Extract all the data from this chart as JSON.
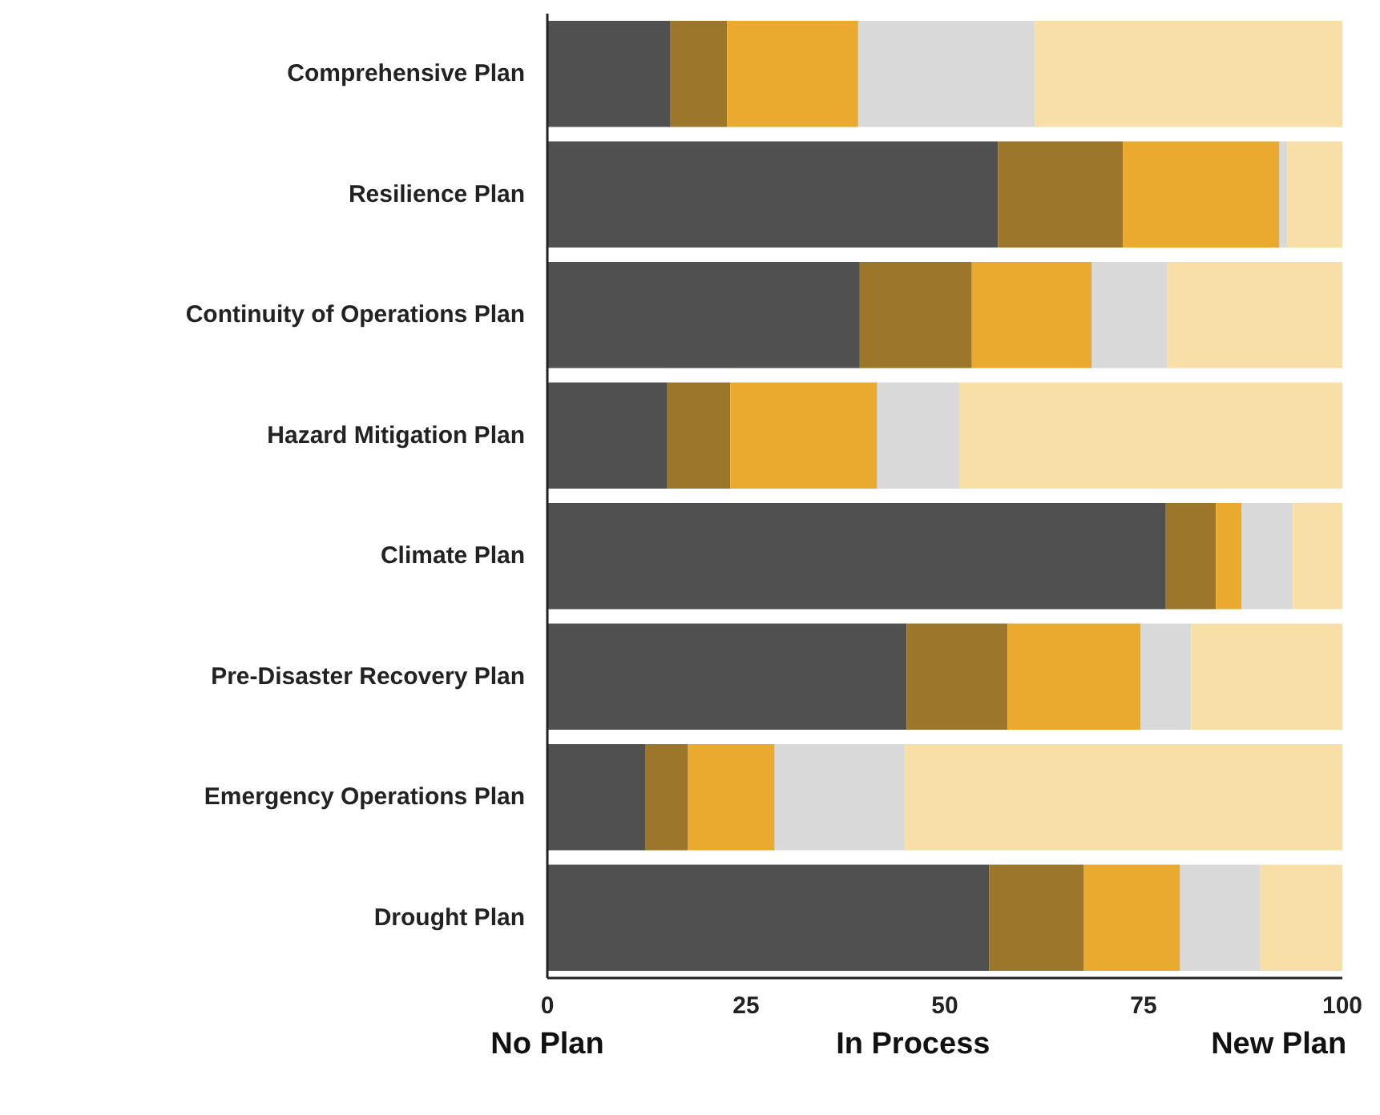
{
  "chart_data": {
    "type": "bar",
    "orientation": "horizontal",
    "stacked": true,
    "categories": [
      "Comprehensive Plan",
      "Resilience Plan",
      "Continuity of Operations Plan",
      "Hazard Mitigation Plan",
      "Climate Plan",
      "Pre-Disaster Recovery Plan",
      "Emergency Operations Plan",
      "Drought Plan"
    ],
    "series": [
      {
        "color": "#505050",
        "values": [
          15.5,
          56.7,
          39.3,
          15.1,
          77.8,
          45.2,
          12.3,
          55.6
        ]
      },
      {
        "color": "#9c772b",
        "values": [
          7.1,
          15.7,
          14.1,
          7.9,
          6.3,
          12.7,
          5.4,
          11.9
        ]
      },
      {
        "color": "#eaa92f",
        "values": [
          16.5,
          19.7,
          15.1,
          18.5,
          3.2,
          16.7,
          10.9,
          12.1
        ]
      },
      {
        "color": "#d9d9d9",
        "values": [
          22.2,
          1.0,
          9.5,
          10.3,
          6.5,
          6.4,
          16.4,
          10.1
        ]
      },
      {
        "color": "#f8dfa8",
        "values": [
          38.7,
          6.9,
          22.0,
          48.2,
          6.2,
          19.0,
          55.0,
          10.3
        ]
      }
    ],
    "xlim": [
      0,
      100
    ],
    "xticks": [
      0,
      25,
      50,
      75,
      100
    ],
    "grid": false,
    "annotations": [
      "No Plan",
      "In Process",
      "New Plan"
    ]
  }
}
